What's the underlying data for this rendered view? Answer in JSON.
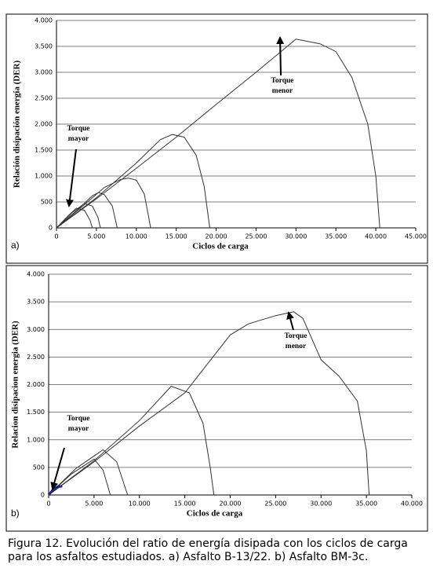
{
  "chart_data": [
    {
      "type": "line",
      "panel_label": "a)",
      "xlabel": "Ciclos de carga",
      "ylabel": "Relación disipación energía (DER)",
      "annotations": [
        [
          "Torque",
          "menor"
        ],
        [
          "Torque",
          "mayor"
        ]
      ],
      "xlim": [
        0,
        45000
      ],
      "ylim": [
        0,
        4000
      ],
      "grid": true,
      "xticks": [
        0,
        {
          "value": 5000,
          "label": "5.000"
        },
        {
          "value": 10000,
          "label": "10.000"
        },
        {
          "value": 15000,
          "label": "15.000"
        },
        {
          "value": 20000,
          "label": "20.000"
        },
        {
          "value": 25000,
          "label": "25.000"
        },
        {
          "value": 30000,
          "label": "30.000"
        },
        {
          "value": 35000,
          "label": "35.000"
        },
        {
          "value": 40000,
          "label": "40.000"
        },
        {
          "value": 45000,
          "label": "45.000"
        }
      ],
      "yticks": [
        0,
        500,
        {
          "value": 1000,
          "label": "1.000"
        },
        {
          "value": 1500,
          "label": "1.500"
        },
        {
          "value": 2000,
          "label": "2.000"
        },
        {
          "value": 2500,
          "label": "2.500"
        },
        {
          "value": 3000,
          "label": "3.000"
        },
        {
          "value": 3500,
          "label": "3.500"
        },
        {
          "value": 4000,
          "label": "4.000"
        }
      ],
      "series": [
        {
          "color": "#333333",
          "x": [
            0,
            5000,
            10000,
            15000,
            20000,
            25000,
            30000,
            33000,
            35000,
            37000,
            39000,
            40000,
            40500
          ],
          "values": [
            0,
            560,
            1150,
            1750,
            2380,
            3000,
            3640,
            3550,
            3400,
            2900,
            2000,
            1000,
            0
          ]
        },
        {
          "color": "#333333",
          "x": [
            0,
            5000,
            10000,
            13000,
            14500,
            16000,
            17500,
            18500,
            19200
          ],
          "values": [
            0,
            580,
            1250,
            1700,
            1800,
            1750,
            1400,
            800,
            0
          ]
        },
        {
          "color": "#333333",
          "x": [
            0,
            3000,
            6000,
            8000,
            9000,
            10000,
            11000,
            11800
          ],
          "values": [
            0,
            380,
            780,
            930,
            960,
            920,
            650,
            0
          ]
        },
        {
          "color": "#333333",
          "x": [
            0,
            2500,
            4500,
            5300,
            6000,
            7000,
            7600
          ],
          "values": [
            0,
            330,
            620,
            680,
            640,
            420,
            0
          ]
        },
        {
          "color": "#333333",
          "x": [
            0,
            2000,
            3500,
            4500,
            5200,
            5500
          ],
          "values": [
            0,
            300,
            470,
            420,
            200,
            0
          ]
        },
        {
          "color": "#333333",
          "x": [
            0,
            1500,
            2500,
            3500,
            4200,
            4500
          ],
          "values": [
            0,
            240,
            380,
            340,
            150,
            0
          ]
        }
      ]
    },
    {
      "type": "line",
      "panel_label": "b)",
      "xlabel": "Ciclos de carga",
      "ylabel": "Relacion disipacion energia (DER)",
      "annotations": [
        [
          "Torque",
          "menor"
        ],
        [
          "Torque",
          "mayor"
        ]
      ],
      "xlim": [
        0,
        40000
      ],
      "ylim": [
        0,
        4000
      ],
      "grid": true,
      "xticks": [
        0,
        {
          "value": 5000,
          "label": "5.000"
        },
        {
          "value": 10000,
          "label": "10.000"
        },
        {
          "value": 15000,
          "label": "15.000"
        },
        {
          "value": 20000,
          "label": "20.000"
        },
        {
          "value": 25000,
          "label": "25.000"
        },
        {
          "value": 30000,
          "label": "30.000"
        },
        {
          "value": 35000,
          "label": "35.000"
        },
        {
          "value": 40000,
          "label": "40.000"
        }
      ],
      "yticks": [
        0,
        500,
        {
          "value": 1000,
          "label": "1.000"
        },
        {
          "value": 1500,
          "label": "1.500"
        },
        {
          "value": 2000,
          "label": "2.000"
        },
        {
          "value": 2500,
          "label": "2.500"
        },
        {
          "value": 3000,
          "label": "3.000"
        },
        {
          "value": 3500,
          "label": "3.500"
        },
        {
          "value": 4000,
          "label": "4.000"
        }
      ],
      "series": [
        {
          "color": "#333333",
          "x": [
            0,
            5000,
            10000,
            15000,
            20000,
            22000,
            25000,
            27000,
            28000,
            30000,
            32000,
            34000,
            35000,
            35300
          ],
          "values": [
            0,
            600,
            1250,
            1850,
            2900,
            3100,
            3250,
            3320,
            3200,
            2450,
            2150,
            1700,
            800,
            0
          ]
        },
        {
          "color": "#333333",
          "x": [
            0,
            5000,
            10000,
            13500,
            15500,
            17000,
            17800,
            18200
          ],
          "values": [
            0,
            620,
            1350,
            1970,
            1850,
            1300,
            500,
            0
          ]
        },
        {
          "color": "#333333",
          "x": [
            0,
            3000,
            6000,
            7500,
            8700
          ],
          "values": [
            0,
            480,
            820,
            600,
            0
          ]
        },
        {
          "color": "#333333",
          "x": [
            0,
            2500,
            5000,
            6000,
            6800
          ],
          "values": [
            0,
            380,
            650,
            450,
            0
          ]
        },
        {
          "color": "#1a237e",
          "x": [
            0,
            500,
            1000,
            1500
          ],
          "values": [
            0,
            100,
            150,
            160
          ]
        }
      ]
    }
  ],
  "caption": "Figura 12. Evolución del ratio de energía disipada con los ciclos de carga para los asfaltos estudiados. a) Asfalto B-13/22.  b) Asfalto BM-3c."
}
